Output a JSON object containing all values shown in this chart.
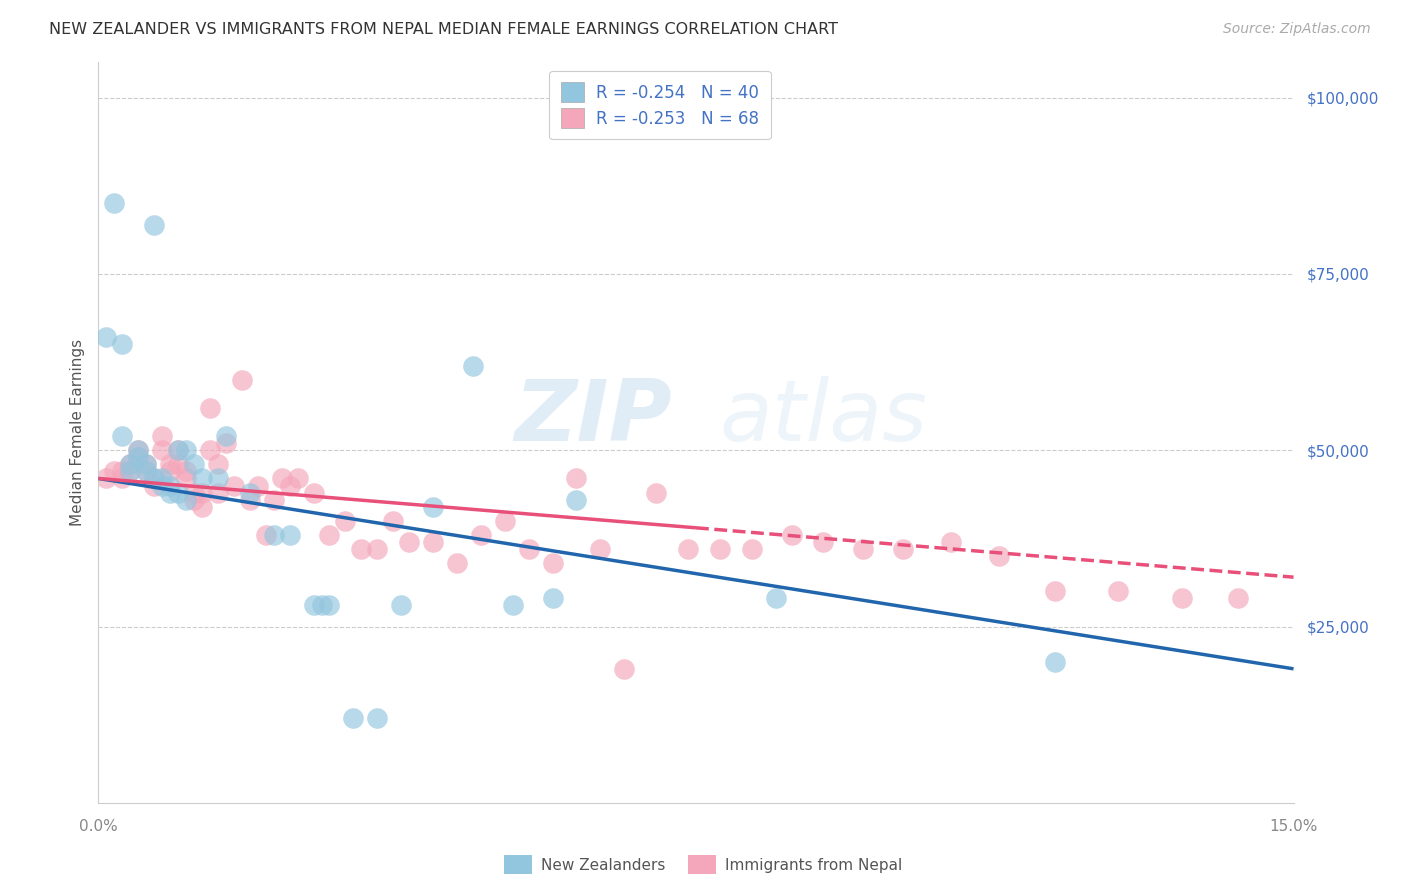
{
  "title": "NEW ZEALANDER VS IMMIGRANTS FROM NEPAL MEDIAN FEMALE EARNINGS CORRELATION CHART",
  "source": "Source: ZipAtlas.com",
  "ylabel": "Median Female Earnings",
  "right_yticks": [
    "$100,000",
    "$75,000",
    "$50,000",
    "$25,000"
  ],
  "right_ytick_vals": [
    100000,
    75000,
    50000,
    25000
  ],
  "legend1_text": "R = -0.254   N = 40",
  "legend2_text": "R = -0.253   N = 68",
  "nz_color": "#92c5de",
  "nepal_color": "#f4a6ba",
  "nz_line_color": "#2166ac",
  "nepal_line_color": "#e8507a",
  "background_color": "#ffffff",
  "grid_color": "#cccccc",
  "title_color": "#333333",
  "label_color": "#4472c4",
  "xmin": 0.0,
  "xmax": 0.15,
  "ymin": 0,
  "ymax": 105000,
  "nz_scatter_x": [
    0.001,
    0.002,
    0.003,
    0.003,
    0.004,
    0.004,
    0.005,
    0.005,
    0.006,
    0.006,
    0.007,
    0.007,
    0.008,
    0.008,
    0.009,
    0.009,
    0.01,
    0.01,
    0.011,
    0.011,
    0.012,
    0.013,
    0.015,
    0.016,
    0.019,
    0.022,
    0.024,
    0.027,
    0.028,
    0.029,
    0.032,
    0.035,
    0.038,
    0.042,
    0.047,
    0.052,
    0.057,
    0.06,
    0.085,
    0.12
  ],
  "nz_scatter_y": [
    66000,
    85000,
    65000,
    52000,
    48000,
    47000,
    50000,
    49000,
    48000,
    47000,
    46000,
    82000,
    46000,
    45000,
    45000,
    44000,
    44000,
    50000,
    43000,
    50000,
    48000,
    46000,
    46000,
    52000,
    44000,
    38000,
    38000,
    28000,
    28000,
    28000,
    12000,
    12000,
    28000,
    42000,
    62000,
    28000,
    29000,
    43000,
    29000,
    20000
  ],
  "nz_line_x": [
    0.0,
    0.15
  ],
  "nz_line_y": [
    46000,
    19000
  ],
  "nepal_scatter_x": [
    0.001,
    0.002,
    0.003,
    0.003,
    0.004,
    0.004,
    0.005,
    0.005,
    0.006,
    0.006,
    0.007,
    0.007,
    0.008,
    0.008,
    0.009,
    0.009,
    0.01,
    0.01,
    0.011,
    0.011,
    0.012,
    0.012,
    0.013,
    0.013,
    0.014,
    0.014,
    0.015,
    0.015,
    0.016,
    0.017,
    0.018,
    0.019,
    0.02,
    0.021,
    0.022,
    0.023,
    0.024,
    0.025,
    0.027,
    0.029,
    0.031,
    0.033,
    0.035,
    0.037,
    0.039,
    0.042,
    0.045,
    0.048,
    0.051,
    0.054,
    0.057,
    0.06,
    0.063,
    0.066,
    0.07,
    0.074,
    0.078,
    0.082,
    0.087,
    0.091,
    0.096,
    0.101,
    0.107,
    0.113,
    0.12,
    0.128,
    0.136,
    0.143
  ],
  "nepal_scatter_y": [
    46000,
    47000,
    47000,
    46000,
    48000,
    47000,
    50000,
    49000,
    48000,
    47000,
    46000,
    45000,
    52000,
    50000,
    48000,
    47000,
    50000,
    48000,
    47000,
    46000,
    44000,
    43000,
    44000,
    42000,
    50000,
    56000,
    44000,
    48000,
    51000,
    45000,
    60000,
    43000,
    45000,
    38000,
    43000,
    46000,
    45000,
    46000,
    44000,
    38000,
    40000,
    36000,
    36000,
    40000,
    37000,
    37000,
    34000,
    38000,
    40000,
    36000,
    34000,
    46000,
    36000,
    19000,
    44000,
    36000,
    36000,
    36000,
    38000,
    37000,
    36000,
    36000,
    37000,
    35000,
    30000,
    30000,
    29000,
    29000
  ],
  "nepal_solid_line_x": [
    0.0,
    0.075
  ],
  "nepal_solid_line_y": [
    46000,
    39000
  ],
  "nepal_dashed_line_x": [
    0.075,
    0.15
  ],
  "nepal_dashed_line_y": [
    39000,
    32000
  ],
  "watermark_zip": "ZIP",
  "watermark_atlas": "atlas",
  "legend_label1": "New Zealanders",
  "legend_label2": "Immigrants from Nepal"
}
